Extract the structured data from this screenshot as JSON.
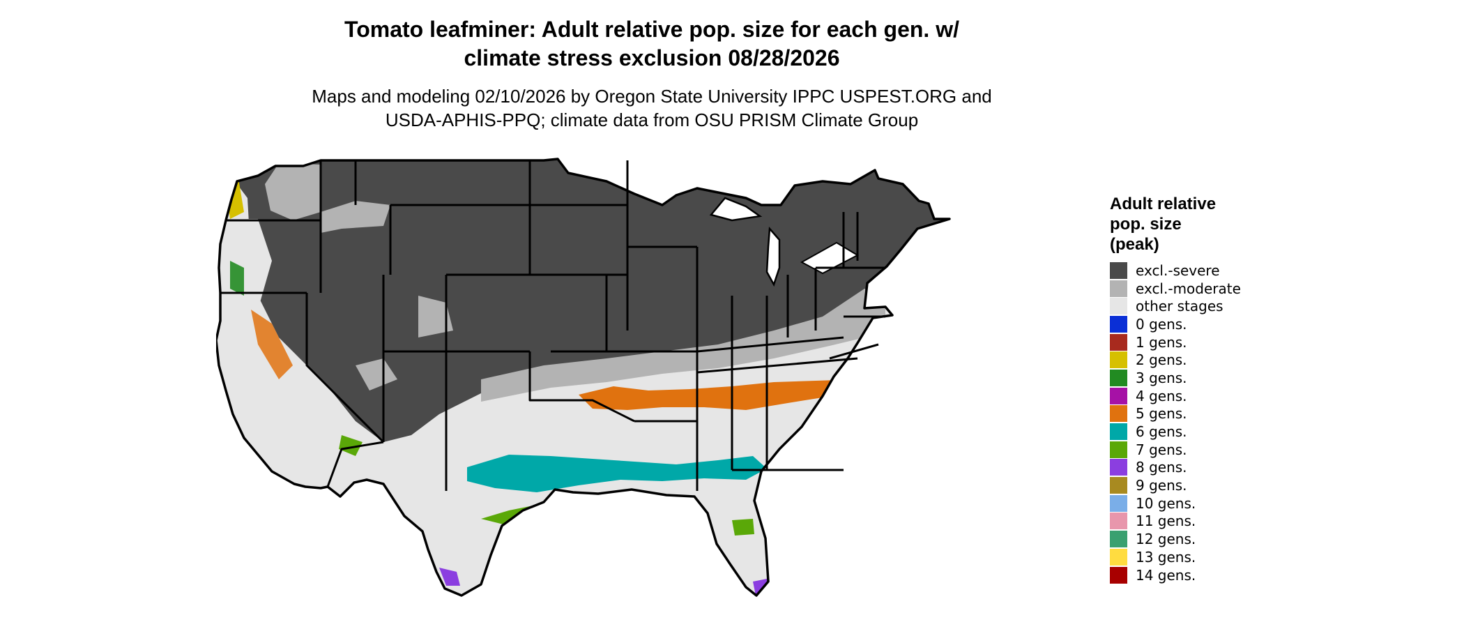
{
  "title": {
    "line1": "Tomato leafminer: Adult relative pop. size for each gen. w/",
    "line2": "climate stress exclusion 08/28/2026"
  },
  "subtitle": {
    "line1": "Maps and modeling 02/10/2026 by Oregon State University IPPC USPEST.ORG and",
    "line2": "USDA-APHIS-PPQ; climate data from OSU PRISM Climate Group"
  },
  "legend": {
    "title_lines": [
      "Adult relative",
      "pop. size",
      "(peak)"
    ],
    "items": [
      {
        "label": "excl.-severe",
        "color": "#4a4a4a"
      },
      {
        "label": "excl.-moderate",
        "color": "#b3b3b3"
      },
      {
        "label": "other stages",
        "color": "#e6e6e6"
      },
      {
        "label": "0 gens.",
        "color": "#0a2fd6"
      },
      {
        "label": "1 gens.",
        "color": "#a82a1e"
      },
      {
        "label": "2 gens.",
        "color": "#d6c000"
      },
      {
        "label": "3 gens.",
        "color": "#228b22"
      },
      {
        "label": "4 gens.",
        "color": "#a611a6"
      },
      {
        "label": "5 gens.",
        "color": "#e0720f"
      },
      {
        "label": "6 gens.",
        "color": "#00a8a8"
      },
      {
        "label": "7 gens.",
        "color": "#5aa808"
      },
      {
        "label": "8 gens.",
        "color": "#8b3ee0"
      },
      {
        "label": "9 gens.",
        "color": "#a88a20"
      },
      {
        "label": "10 gens.",
        "color": "#7aaee8"
      },
      {
        "label": "11 gens.",
        "color": "#e896ac"
      },
      {
        "label": "12 gens.",
        "color": "#3aa070"
      },
      {
        "label": "13 gens.",
        "color": "#ffdc40"
      },
      {
        "label": "14 gens.",
        "color": "#a80000"
      }
    ]
  },
  "map": {
    "region": "Contiguous United States",
    "background": "#ffffff",
    "border_color": "#000000"
  }
}
